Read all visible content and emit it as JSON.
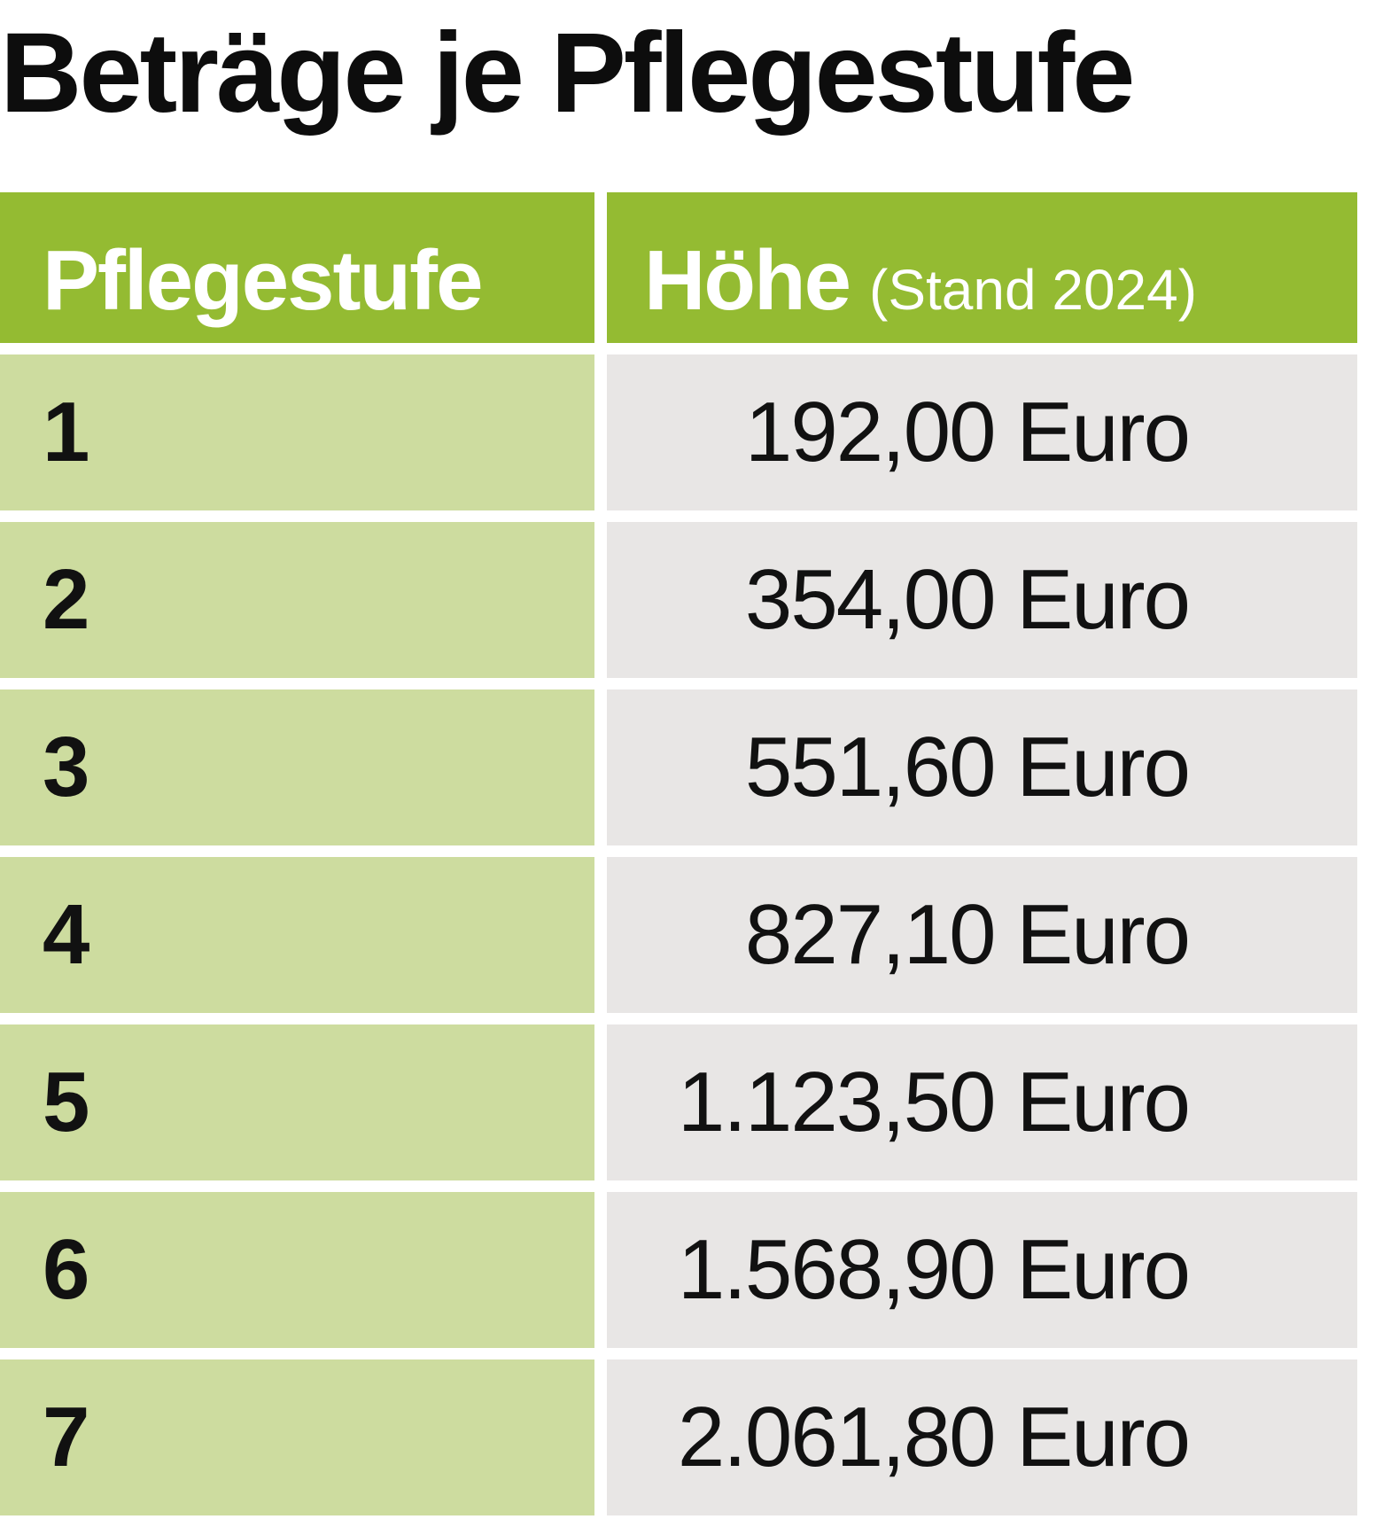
{
  "title": "Beträge je Pflegestufe",
  "table": {
    "header": {
      "col1": "Pflegestufe",
      "col2": "Höhe",
      "col2_note": "(Stand 2024)"
    },
    "rows": [
      {
        "level": "1",
        "amount": "192,00 Euro"
      },
      {
        "level": "2",
        "amount": "354,00 Euro"
      },
      {
        "level": "3",
        "amount": "551,60 Euro"
      },
      {
        "level": "4",
        "amount": "827,10 Euro"
      },
      {
        "level": "5",
        "amount": "1.123,50 Euro"
      },
      {
        "level": "6",
        "amount": "1.568,90 Euro"
      },
      {
        "level": "7",
        "amount": "2.061,80 Euro"
      }
    ]
  },
  "colors": {
    "header_green": "#94bb32",
    "light_green": "#cddc9f",
    "light_gray": "#e8e6e5"
  }
}
